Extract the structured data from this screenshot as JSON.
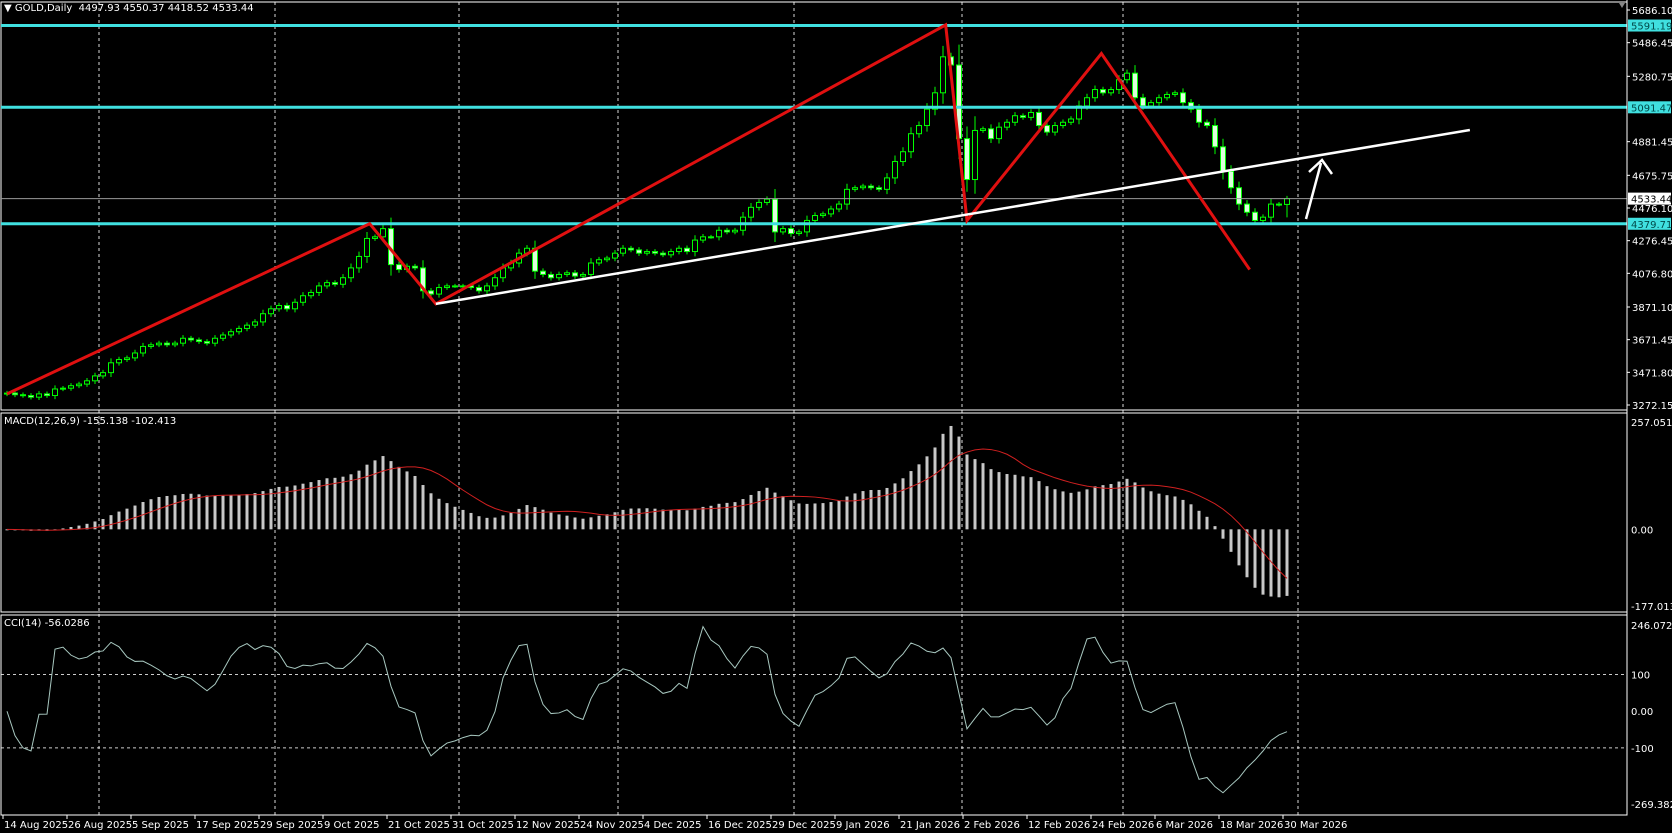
{
  "header": {
    "menu_icon": "triangle-down-icon",
    "symbol": "GOLD,Daily",
    "ohlc": "4497.93 4550.37 4418.52 4533.44"
  },
  "macd_label": "MACD(12,26,9) -155.138 -102.413",
  "cci_label": "CCI(14) -56.0286",
  "colors": {
    "background": "#000000",
    "bull_outline": "#00ff00",
    "bear_fill": "#dcffdc",
    "level_line": "#40e0e0",
    "zigzag": "#e01010",
    "trendline": "#ffffff",
    "macd_histogram": "#c8c8c8",
    "macd_signal": "#d02020",
    "cci_line": "#a8c8c0",
    "current_price_line": "#9a9a9a",
    "grid": "#ffffff"
  },
  "chart_data": {
    "type": "candlestick",
    "symbol": "GOLD",
    "timeframe": "Daily",
    "x_tick_labels": [
      "14 Aug 2025",
      "26 Aug 2025",
      "5 Sep 2025",
      "17 Sep 2025",
      "29 Sep 2025",
      "9 Oct 2025",
      "21 Oct 2025",
      "31 Oct 2025",
      "12 Nov 2025",
      "24 Nov 2025",
      "4 Dec 2025",
      "16 Dec 2025",
      "29 Dec 2025",
      "9 Jan 2026",
      "21 Jan 2026",
      "2 Feb 2026",
      "12 Feb 2026",
      "24 Feb 2026",
      "6 Mar 2026",
      "18 Mar 2026",
      "30 Mar 2026"
    ],
    "price_axis": {
      "ylim": [
        3272.15,
        5686.1
      ],
      "tick_labels": [
        "5686.10",
        "5486.45",
        "5280.75",
        "4881.45",
        "4675.75",
        "4476.10",
        "4276.45",
        "4076.80",
        "3871.10",
        "3671.45",
        "3471.80",
        "3272.15"
      ]
    },
    "closes": [
      3345,
      3335,
      3330,
      3320,
      3340,
      3330,
      3370,
      3375,
      3390,
      3400,
      3420,
      3450,
      3470,
      3530,
      3550,
      3560,
      3590,
      3630,
      3640,
      3650,
      3640,
      3650,
      3680,
      3670,
      3660,
      3650,
      3680,
      3700,
      3720,
      3740,
      3760,
      3780,
      3830,
      3860,
      3880,
      3860,
      3900,
      3940,
      3960,
      4000,
      4020,
      4010,
      4050,
      4110,
      4180,
      4290,
      4300,
      4350,
      4130,
      4100,
      4120,
      4110,
      3970,
      3950,
      3990,
      4000,
      4000,
      4000,
      3990,
      3970,
      4000,
      4050,
      4110,
      4140,
      4200,
      4230,
      4090,
      4070,
      4050,
      4070,
      4080,
      4060,
      4070,
      4140,
      4160,
      4170,
      4200,
      4230,
      4220,
      4200,
      4210,
      4200,
      4190,
      4210,
      4230,
      4210,
      4280,
      4300,
      4300,
      4340,
      4330,
      4340,
      4420,
      4480,
      4510,
      4530,
      4330,
      4350,
      4320,
      4330,
      4400,
      4430,
      4440,
      4470,
      4500,
      4590,
      4600,
      4610,
      4600,
      4590,
      4660,
      4760,
      4820,
      4930,
      4980,
      5080,
      5180,
      5400,
      5350,
      4900,
      4650,
      4950,
      4960,
      4900,
      4970,
      5000,
      5040,
      5030,
      5060,
      4980,
      4940,
      4980,
      5000,
      5020,
      5100,
      5150,
      5200,
      5180,
      5200,
      5260,
      5300,
      5150,
      5100,
      5120,
      5150,
      5170,
      5180,
      5120,
      5080,
      5000,
      4980,
      4850,
      4700,
      4600,
      4500,
      4450,
      4400,
      4420,
      4500,
      4498,
      4533.44
    ],
    "last_bar": {
      "open": 4497.93,
      "high": 4550.37,
      "low": 4418.52,
      "close": 4533.44
    },
    "current_price": 4533.44,
    "horizontal_levels": [
      5591.19,
      5091.47,
      4379.71
    ],
    "zigzag": [
      {
        "date": "2025-08-14",
        "price": 3340
      },
      {
        "date": "2025-10-17",
        "price": 4380
      },
      {
        "date": "2025-10-28",
        "price": 3890
      },
      {
        "date": "2026-01-29",
        "price": 5595
      },
      {
        "date": "2026-02-02",
        "price": 4400
      },
      {
        "date": "2026-02-25",
        "price": 5420
      },
      {
        "date": "2026-03-23",
        "price": 4100
      }
    ],
    "trendline": [
      {
        "date": "2025-10-28",
        "price": 3890
      },
      {
        "date": "2026-05-01",
        "price": 4953
      }
    ],
    "macd": {
      "params": [
        12,
        26,
        9
      ],
      "main": -155.138,
      "signal": -102.413,
      "ylim": [
        -177.013,
        257.051
      ],
      "tick_labels": [
        "257.051",
        "0.00",
        "-177.013"
      ]
    },
    "cci": {
      "period": 14,
      "value": -56.0286,
      "ylim": [
        -269.382,
        246.0723
      ],
      "levels": [
        100,
        -100
      ],
      "tick_labels": [
        "246.0723",
        "100",
        "0.00",
        "-100",
        "-269.382"
      ]
    }
  }
}
